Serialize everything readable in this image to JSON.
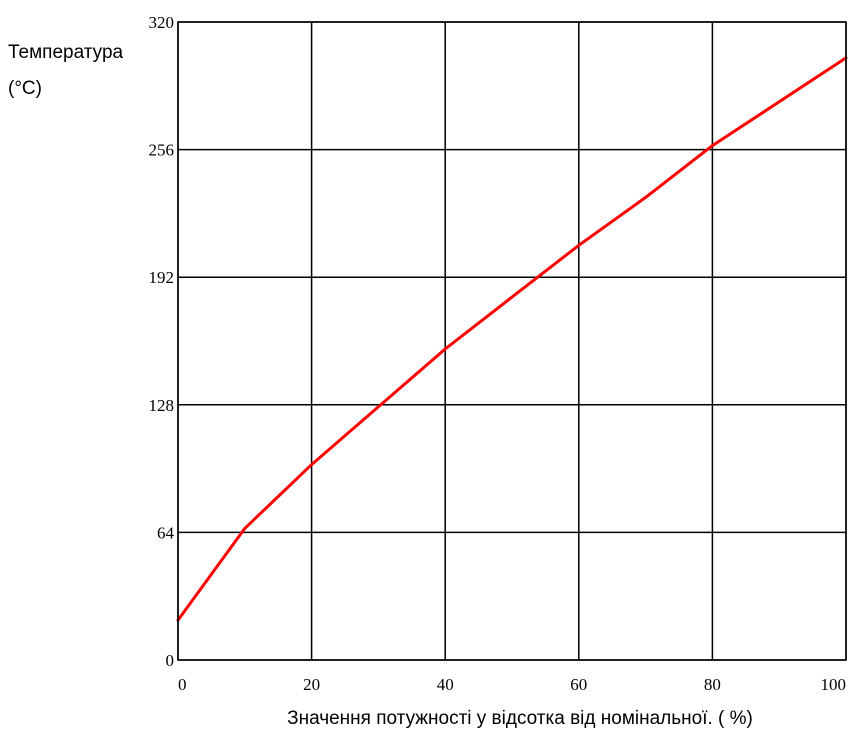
{
  "chart_data": {
    "type": "line",
    "title": "",
    "xlabel": "Значення потужності у відсотка від номінальної. ( %)",
    "ylabel_line1": "Температура",
    "ylabel_line2": "(°C)",
    "xlim": [
      0,
      100
    ],
    "ylim": [
      0,
      320
    ],
    "xticks": [
      0,
      20,
      40,
      60,
      80,
      100
    ],
    "yticks": [
      0,
      64,
      128,
      192,
      256,
      320
    ],
    "grid": true,
    "series": [
      {
        "color": "#ff0000",
        "x": [
          0,
          10,
          20,
          30,
          40,
          50,
          60,
          70,
          80,
          90,
          100
        ],
        "y": [
          20,
          66,
          98,
          127,
          156,
          182,
          208,
          232,
          258,
          280,
          302
        ]
      }
    ]
  }
}
